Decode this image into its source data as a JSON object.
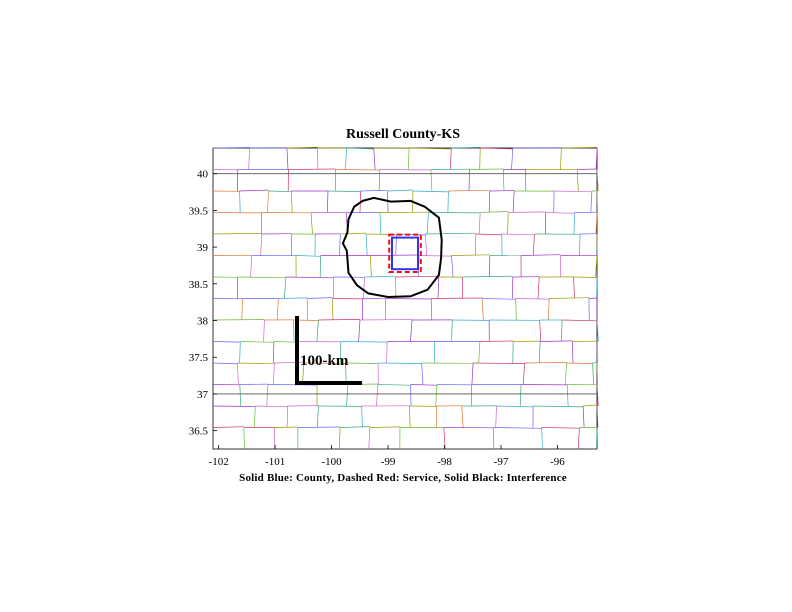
{
  "title": "Russell County-KS",
  "caption": "Solid Blue: County, Dashed Red: Service, Solid Black: Interference",
  "scale_label": "100-km",
  "axes": {
    "x_ticks": [
      -102,
      -101,
      -100,
      -99,
      -98,
      -97,
      -96
    ],
    "x_tick_labels": [
      "-102",
      "-101",
      "-100",
      "-99",
      "-98",
      "-97",
      "-96"
    ],
    "y_ticks": [
      40,
      39.5,
      39,
      38.5,
      38,
      37.5,
      37,
      36.5
    ],
    "y_tick_labels": [
      "40",
      "39.5",
      "39",
      "38.5",
      "38",
      "37.5",
      "37",
      "36.5"
    ],
    "xlim": [
      -102.1,
      -95.3
    ],
    "ylim": [
      36.25,
      40.35
    ]
  },
  "colors": {
    "county": "#3333ee",
    "service": "#ee1111",
    "interference": "#000000",
    "grid_palette": [
      "#9933cc",
      "#33aa77",
      "#cc3366",
      "#6666ff",
      "#999900",
      "#cc66cc",
      "#33aacc",
      "#dd7733",
      "#66bb33"
    ]
  },
  "county_box": {
    "lon": [
      -98.93,
      -98.47
    ],
    "lat": [
      38.7,
      39.13
    ]
  },
  "service_box": {
    "lon": [
      -98.98,
      -98.42
    ],
    "lat": [
      38.66,
      39.17
    ]
  },
  "interference_contour": [
    [
      -99.45,
      39.63
    ],
    [
      -99.25,
      39.67
    ],
    [
      -98.95,
      39.62
    ],
    [
      -98.6,
      39.63
    ],
    [
      -98.35,
      39.55
    ],
    [
      -98.1,
      39.4
    ],
    [
      -98.05,
      39.1
    ],
    [
      -98.06,
      38.85
    ],
    [
      -98.1,
      38.62
    ],
    [
      -98.3,
      38.42
    ],
    [
      -98.6,
      38.33
    ],
    [
      -99.0,
      38.32
    ],
    [
      -99.35,
      38.37
    ],
    [
      -99.55,
      38.48
    ],
    [
      -99.7,
      38.65
    ],
    [
      -99.73,
      38.95
    ],
    [
      -99.8,
      39.05
    ],
    [
      -99.72,
      39.2
    ],
    [
      -99.7,
      39.38
    ],
    [
      -99.6,
      39.55
    ],
    [
      -99.45,
      39.63
    ]
  ]
}
